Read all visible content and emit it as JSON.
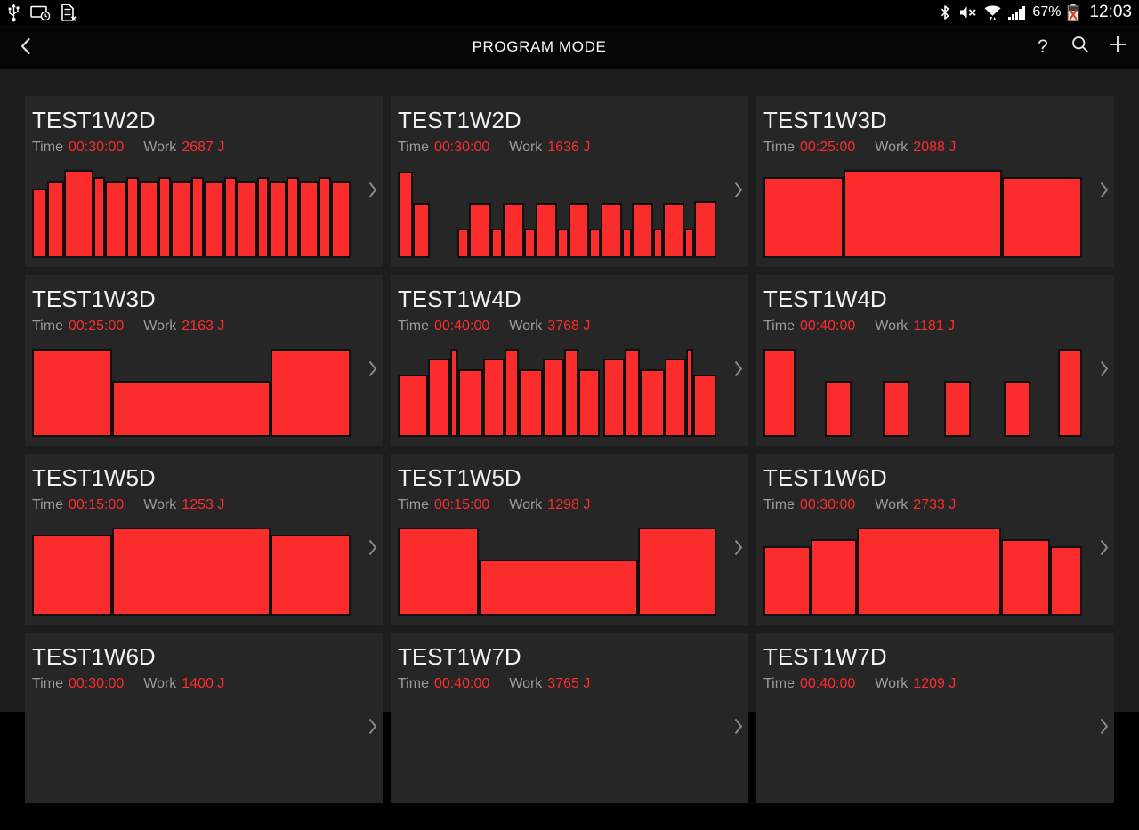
{
  "status_bar": {
    "time": "12:03",
    "battery_percent": "67%",
    "left_icons": [
      "usb-icon",
      "screen-timeout-icon",
      "no-sim-icon"
    ],
    "right_icons": [
      "bluetooth-icon",
      "mute-icon",
      "wifi-traffic-icon",
      "signal-strength-icon",
      "battery-error-icon"
    ]
  },
  "header": {
    "title": "PROGRAM MODE",
    "actions": {
      "help": "?"
    },
    "action_icons": [
      "help-button",
      "search-icon",
      "add-icon"
    ]
  },
  "labels": {
    "time": "Time",
    "work": "Work"
  },
  "colors": {
    "accent_red": "#fb2c2c",
    "page_bg": "#1d1d1d",
    "card_bg": "#262626",
    "bar_border": "#101010",
    "label_gray": "#9c9c9c"
  },
  "cards": [
    {
      "title": "TEST1W2D",
      "time": "00:30:00",
      "work": "2687 J",
      "bars": [
        [
          15,
          78
        ],
        [
          17,
          86
        ],
        [
          33,
          99
        ],
        [
          11,
          91
        ],
        [
          22,
          86
        ],
        [
          12,
          91
        ],
        [
          21,
          86
        ],
        [
          11,
          91
        ],
        [
          22,
          86
        ],
        [
          11,
          91
        ],
        [
          22,
          86
        ],
        [
          11,
          91
        ],
        [
          22,
          86
        ],
        [
          11,
          91
        ],
        [
          18,
          86
        ],
        [
          11,
          91
        ],
        [
          21,
          86
        ],
        [
          11,
          91
        ],
        [
          21,
          86
        ]
      ]
    },
    {
      "title": "TEST1W2D",
      "time": "00:30:00",
      "work": "1636 J",
      "bars": [
        [
          17,
          97
        ],
        [
          18,
          62
        ],
        [
          40,
          0
        ],
        [
          12,
          33
        ],
        [
          26,
          62
        ],
        [
          12,
          33
        ],
        [
          25,
          62
        ],
        [
          12,
          33
        ],
        [
          25,
          62
        ],
        [
          11,
          33
        ],
        [
          25,
          62
        ],
        [
          11,
          33
        ],
        [
          26,
          62
        ],
        [
          9,
          33
        ],
        [
          25,
          62
        ],
        [
          9,
          33
        ],
        [
          25,
          62
        ],
        [
          9,
          33
        ],
        [
          27,
          64
        ]
      ]
    },
    {
      "title": "TEST1W3D",
      "time": "00:25:00",
      "work": "2088 J",
      "bars": [
        [
          30,
          91
        ],
        [
          61,
          99
        ],
        [
          30,
          91
        ]
      ]
    },
    {
      "title": "TEST1W3D",
      "time": "00:25:00",
      "work": "2163 J",
      "bars": [
        [
          30,
          99
        ],
        [
          61,
          63
        ],
        [
          30,
          99
        ]
      ]
    },
    {
      "title": "TEST1W4D",
      "time": "00:40:00",
      "work": "3768 J",
      "bars": [
        [
          37,
          70
        ],
        [
          26,
          88
        ],
        [
          6,
          99
        ],
        [
          30,
          76
        ],
        [
          24,
          88
        ],
        [
          15,
          99
        ],
        [
          29,
          76
        ],
        [
          24,
          88
        ],
        [
          15,
          99
        ],
        [
          25,
          76
        ],
        [
          5,
          0
        ],
        [
          25,
          88
        ],
        [
          15,
          99
        ],
        [
          30,
          76
        ],
        [
          25,
          88
        ],
        [
          5,
          99
        ],
        [
          27,
          70
        ]
      ]
    },
    {
      "title": "TEST1W4D",
      "time": "00:40:00",
      "work": "1181 J",
      "bars": [
        [
          35,
          99
        ],
        [
          35,
          0
        ],
        [
          28,
          63
        ],
        [
          38,
          0
        ],
        [
          28,
          63
        ],
        [
          42,
          0
        ],
        [
          28,
          63
        ],
        [
          40,
          0
        ],
        [
          28,
          63
        ],
        [
          33,
          0
        ],
        [
          25,
          99
        ]
      ]
    },
    {
      "title": "TEST1W5D",
      "time": "00:15:00",
      "work": "1253 J",
      "bars": [
        [
          30,
          91
        ],
        [
          61,
          99
        ],
        [
          30,
          91
        ]
      ]
    },
    {
      "title": "TEST1W5D",
      "time": "00:15:00",
      "work": "1298 J",
      "bars": [
        [
          32,
          99
        ],
        [
          64,
          63
        ],
        [
          31,
          99
        ]
      ]
    },
    {
      "title": "TEST1W6D",
      "time": "00:30:00",
      "work": "2733 J",
      "bars": [
        [
          17,
          78
        ],
        [
          17,
          86
        ],
        [
          55,
          99
        ],
        [
          18,
          86
        ],
        [
          11,
          78
        ]
      ]
    },
    {
      "title": "TEST1W6D",
      "time": "00:30:00",
      "work": "1400 J",
      "bars": []
    },
    {
      "title": "TEST1W7D",
      "time": "00:40:00",
      "work": "3765 J",
      "bars": []
    },
    {
      "title": "TEST1W7D",
      "time": "00:40:00",
      "work": "1209 J",
      "bars": []
    }
  ]
}
